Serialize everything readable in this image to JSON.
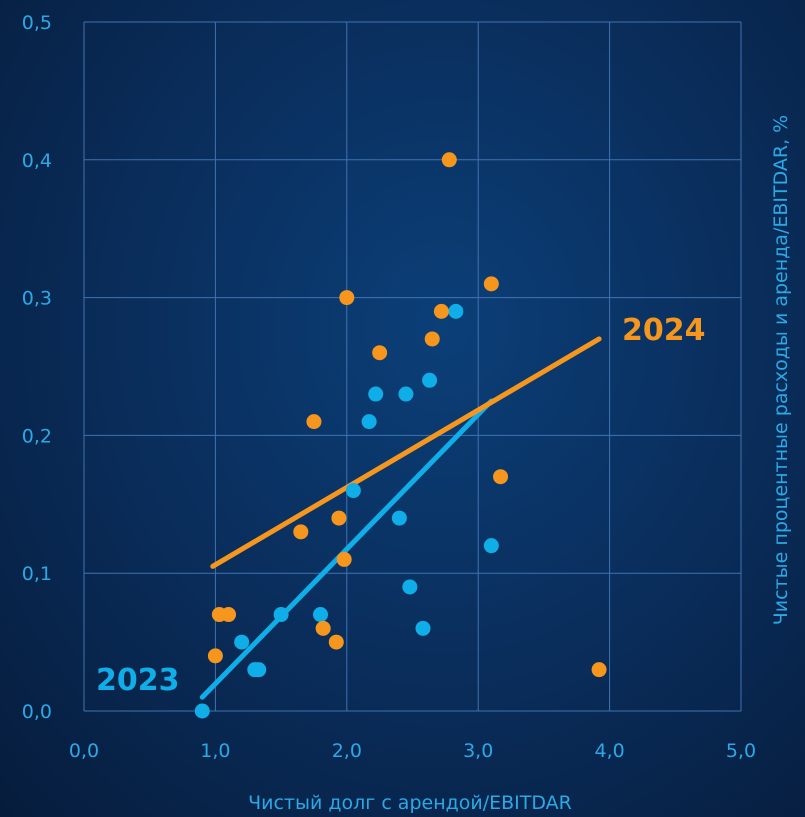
{
  "chart_data": {
    "type": "scatter",
    "xlabel": "Чистый долг с арендой/EBITDAR",
    "ylabel": "Чистые процентные  расходы и аренда/EBITDAR, %",
    "xlim": [
      0,
      5
    ],
    "ylim": [
      0,
      0.5
    ],
    "x_ticks": [
      0,
      1,
      2,
      3,
      4,
      5
    ],
    "y_ticks": [
      0,
      0.1,
      0.2,
      0.3,
      0.4,
      0.5
    ],
    "x_tick_labels": [
      "0,0",
      "1,0",
      "2,0",
      "3,0",
      "4,0",
      "5,0"
    ],
    "y_tick_labels": [
      "0,0",
      "0,1",
      "0,2",
      "0,3",
      "0,4",
      "0,5"
    ],
    "grid": true,
    "series": [
      {
        "name": "2023",
        "color": "#10aee8",
        "points": [
          [
            0.9,
            0.0
          ],
          [
            1.2,
            0.05
          ],
          [
            1.3,
            0.03
          ],
          [
            1.33,
            0.03
          ],
          [
            1.5,
            0.07
          ],
          [
            1.8,
            0.07
          ],
          [
            2.05,
            0.16
          ],
          [
            2.17,
            0.21
          ],
          [
            2.22,
            0.23
          ],
          [
            2.4,
            0.14
          ],
          [
            2.45,
            0.23
          ],
          [
            2.48,
            0.09
          ],
          [
            2.58,
            0.06
          ],
          [
            2.63,
            0.24
          ],
          [
            2.83,
            0.29
          ],
          [
            3.1,
            0.12
          ]
        ],
        "trend": [
          [
            0.9,
            0.01
          ],
          [
            3.1,
            0.225
          ]
        ]
      },
      {
        "name": "2024",
        "color": "#f7961d",
        "points": [
          [
            1.0,
            0.04
          ],
          [
            1.03,
            0.07
          ],
          [
            1.1,
            0.07
          ],
          [
            1.65,
            0.13
          ],
          [
            1.75,
            0.21
          ],
          [
            1.82,
            0.06
          ],
          [
            1.92,
            0.05
          ],
          [
            1.94,
            0.14
          ],
          [
            1.98,
            0.11
          ],
          [
            2.0,
            0.3
          ],
          [
            2.25,
            0.26
          ],
          [
            2.65,
            0.27
          ],
          [
            2.72,
            0.29
          ],
          [
            2.78,
            0.4
          ],
          [
            3.1,
            0.31
          ],
          [
            3.17,
            0.17
          ],
          [
            3.92,
            0.03
          ]
        ],
        "trend": [
          [
            0.98,
            0.105
          ],
          [
            3.92,
            0.27
          ]
        ]
      }
    ]
  }
}
